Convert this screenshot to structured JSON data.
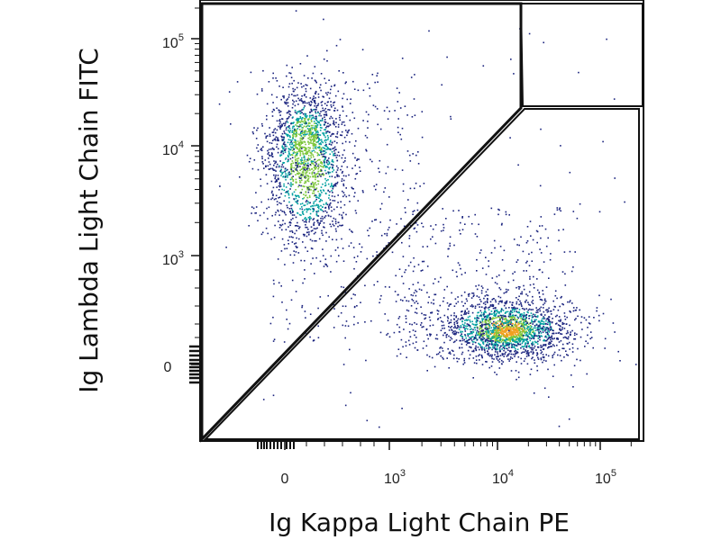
{
  "chart_data": {
    "type": "scatter",
    "subtype": "flow-cytometry-density-dot-plot",
    "title": "",
    "xlabel": "Ig Kappa Light Chain PE",
    "ylabel": "Ig Lambda Light Chain FITC",
    "x_scale": "biexponential",
    "y_scale": "biexponential",
    "x_ticks": [
      {
        "value": 0,
        "base": "0",
        "exp": ""
      },
      {
        "value": 1000,
        "base": "10",
        "exp": "3"
      },
      {
        "value": 10000,
        "base": "10",
        "exp": "4"
      },
      {
        "value": 100000,
        "base": "10",
        "exp": "5"
      }
    ],
    "y_ticks": [
      {
        "value": 0,
        "base": "0",
        "exp": ""
      },
      {
        "value": 1000,
        "base": "10",
        "exp": "3"
      },
      {
        "value": 10000,
        "base": "10",
        "exp": "4"
      },
      {
        "value": 100000,
        "base": "10",
        "exp": "5"
      }
    ],
    "xlim": [
      -500,
      250000
    ],
    "ylim": [
      -500,
      250000
    ],
    "grid": false,
    "legend": "none",
    "populations": [
      {
        "name": "",
        "center": [
          150,
          7000
        ],
        "spread": "wide vertical",
        "density": "high"
      },
      {
        "name": "",
        "center": [
          12000,
          200
        ],
        "spread": "wide horizontal",
        "density": "high"
      }
    ],
    "gates": [
      {
        "type": "polygon",
        "description": "upper-left triangular gate"
      },
      {
        "type": "polygon",
        "description": "lower-right gate"
      },
      {
        "type": "rectangle",
        "description": "upper-right gate"
      }
    ],
    "colors": {
      "low": "#1a237e",
      "mid": "#00a0a0",
      "high_a": "#7cc63a",
      "high_b": "#f0a020",
      "gate": "#111111"
    }
  }
}
